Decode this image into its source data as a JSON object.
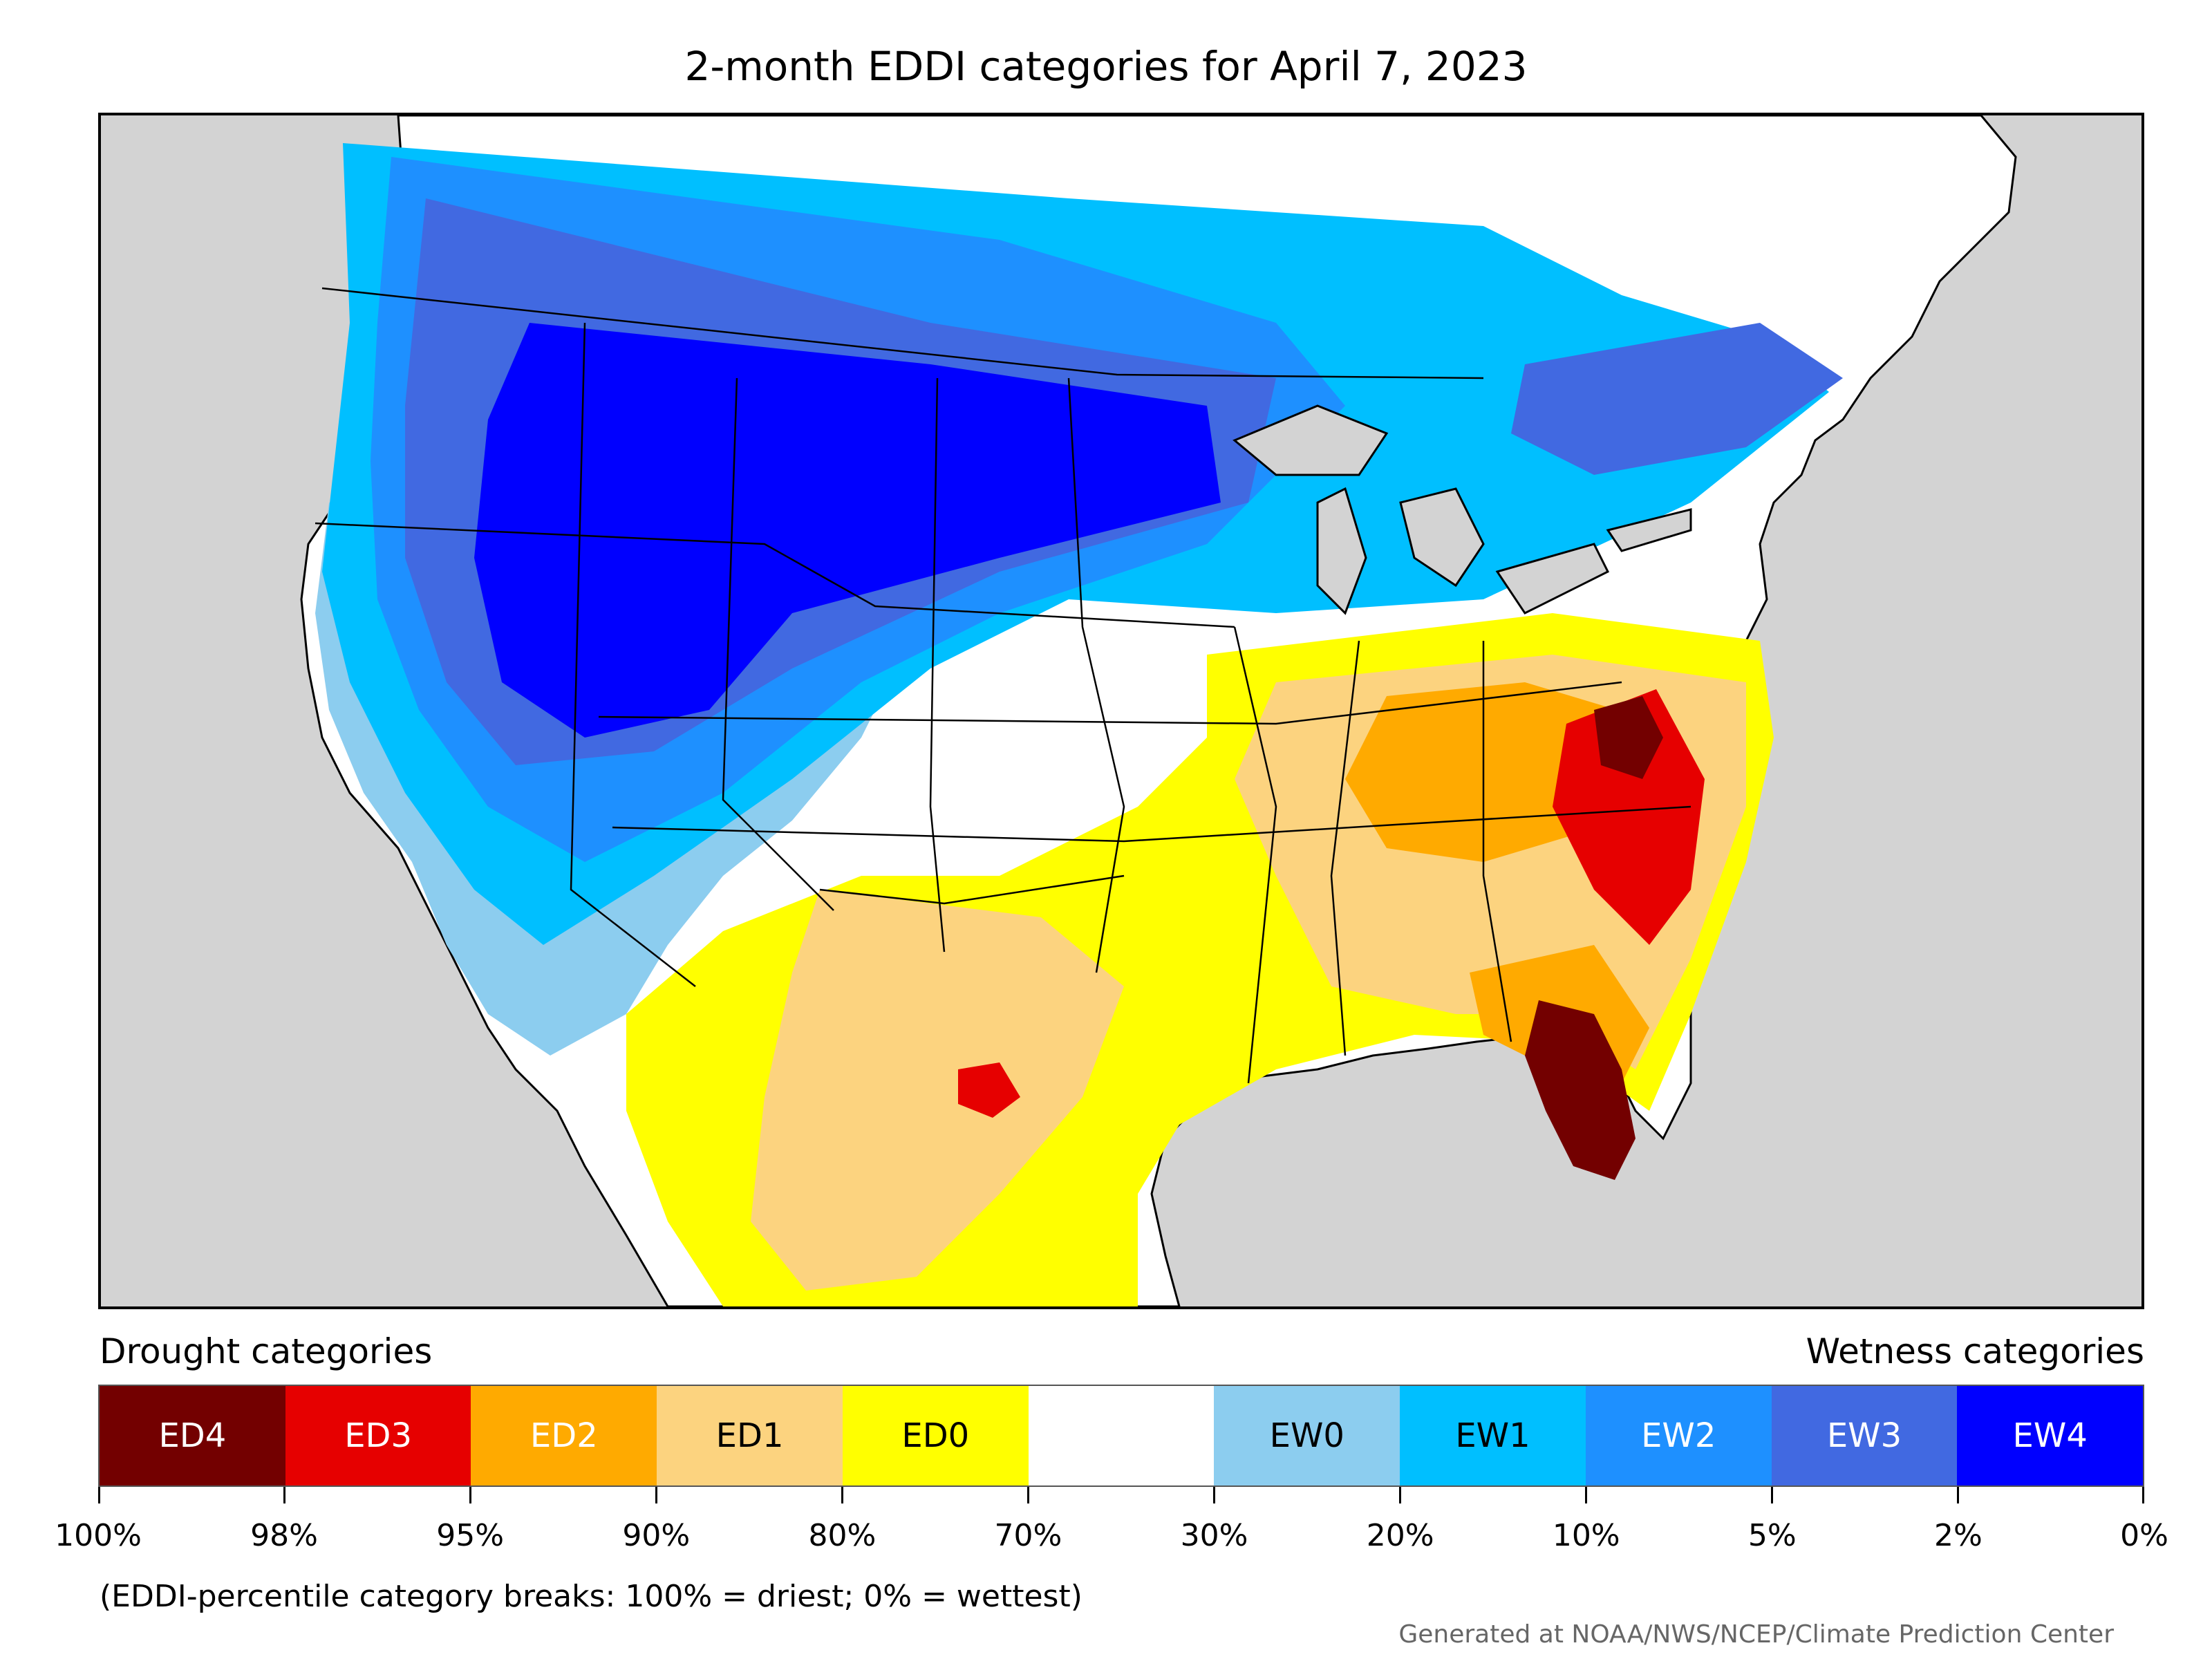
{
  "title": "2-month EDDI categories for April 7, 2023",
  "legend": {
    "left_heading": "Drought categories",
    "right_heading": "Wetness categories",
    "categories": [
      {
        "label": "ED4",
        "color": "#730000",
        "text_color": "#ffffff"
      },
      {
        "label": "ED3",
        "color": "#e60000",
        "text_color": "#ffffff"
      },
      {
        "label": "ED2",
        "color": "#ffaa00",
        "text_color": "#ffffff"
      },
      {
        "label": "ED1",
        "color": "#fcd37f",
        "text_color": "#000000"
      },
      {
        "label": "ED0",
        "color": "#ffff00",
        "text_color": "#000000"
      },
      {
        "label": "",
        "color": "#ffffff",
        "text_color": "#000000"
      },
      {
        "label": "EW0",
        "color": "#8ccdef",
        "text_color": "#000000"
      },
      {
        "label": "EW1",
        "color": "#00bfff",
        "text_color": "#000000"
      },
      {
        "label": "EW2",
        "color": "#1e90ff",
        "text_color": "#ffffff"
      },
      {
        "label": "EW3",
        "color": "#4169e1",
        "text_color": "#ffffff"
      },
      {
        "label": "EW4",
        "color": "#0000ff",
        "text_color": "#ffffff"
      }
    ],
    "tick_labels": [
      "100%",
      "98%",
      "95%",
      "90%",
      "80%",
      "70%",
      "30%",
      "20%",
      "10%",
      "5%",
      "2%",
      "0%"
    ]
  },
  "note": "(EDDI-percentile category breaks: 100% = driest; 0% = wettest)",
  "credit": "Generated at NOAA/NWS/NCEP/Climate Prediction Center"
}
